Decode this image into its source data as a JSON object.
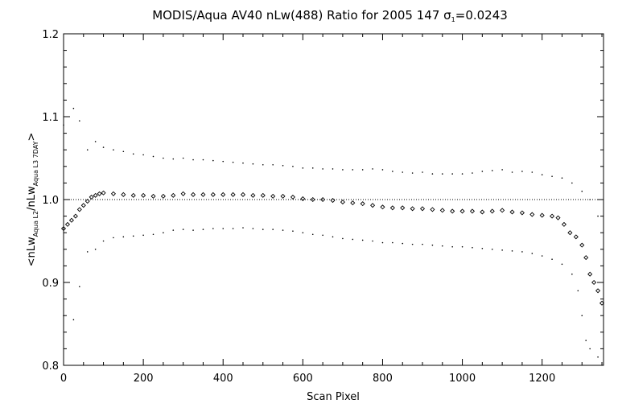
{
  "chart_data": {
    "type": "scatter",
    "title": {
      "prefix": "MODIS/Aqua AV40 nLw(488) Ratio for 2005 147 ",
      "sigma_symbol": "σ",
      "sigma_subscript": "1",
      "sigma_value": "=0.0243"
    },
    "xlabel": "Scan Pixel",
    "ylabel": {
      "open": "<nLw",
      "sub1": "Aqua L2",
      "mid": "/nLw",
      "sub2": "Aqua L3 7DAY",
      "close": ">"
    },
    "xlim": [
      0,
      1354
    ],
    "ylim": [
      0.8,
      1.2
    ],
    "x_ticks": [
      {
        "value": 0,
        "label": "0"
      },
      {
        "value": 200,
        "label": "200"
      },
      {
        "value": 400,
        "label": "400"
      },
      {
        "value": 600,
        "label": "600"
      },
      {
        "value": 800,
        "label": "800"
      },
      {
        "value": 1000,
        "label": "1000"
      },
      {
        "value": 1200,
        "label": "1200"
      }
    ],
    "y_ticks": [
      {
        "value": 0.8,
        "label": "0.8"
      },
      {
        "value": 0.9,
        "label": "0.9"
      },
      {
        "value": 1.0,
        "label": "1.0"
      },
      {
        "value": 1.1,
        "label": "1.1"
      },
      {
        "value": 1.2,
        "label": "1.2"
      }
    ],
    "reference_line": 1.0,
    "series": [
      {
        "role": "mean",
        "marker": "diamond",
        "points": [
          [
            0,
            0.965
          ],
          [
            10,
            0.97
          ],
          [
            20,
            0.975
          ],
          [
            30,
            0.98
          ],
          [
            40,
            0.988
          ],
          [
            50,
            0.993
          ],
          [
            60,
            0.998
          ],
          [
            70,
            1.003
          ],
          [
            80,
            1.005
          ],
          [
            90,
            1.007
          ],
          [
            100,
            1.008
          ],
          [
            125,
            1.007
          ],
          [
            150,
            1.006
          ],
          [
            175,
            1.005
          ],
          [
            200,
            1.005
          ],
          [
            225,
            1.004
          ],
          [
            250,
            1.004
          ],
          [
            275,
            1.005
          ],
          [
            300,
            1.007
          ],
          [
            325,
            1.006
          ],
          [
            350,
            1.006
          ],
          [
            375,
            1.006
          ],
          [
            400,
            1.006
          ],
          [
            425,
            1.006
          ],
          [
            450,
            1.006
          ],
          [
            475,
            1.005
          ],
          [
            500,
            1.005
          ],
          [
            525,
            1.004
          ],
          [
            550,
            1.004
          ],
          [
            575,
            1.003
          ],
          [
            600,
            1.001
          ],
          [
            625,
            1.0
          ],
          [
            650,
            1.0
          ],
          [
            675,
            0.999
          ],
          [
            700,
            0.997
          ],
          [
            725,
            0.996
          ],
          [
            750,
            0.995
          ],
          [
            775,
            0.993
          ],
          [
            800,
            0.991
          ],
          [
            825,
            0.99
          ],
          [
            850,
            0.99
          ],
          [
            875,
            0.989
          ],
          [
            900,
            0.989
          ],
          [
            925,
            0.988
          ],
          [
            950,
            0.987
          ],
          [
            975,
            0.986
          ],
          [
            1000,
            0.986
          ],
          [
            1025,
            0.986
          ],
          [
            1050,
            0.985
          ],
          [
            1075,
            0.986
          ],
          [
            1100,
            0.987
          ],
          [
            1125,
            0.985
          ],
          [
            1150,
            0.984
          ],
          [
            1175,
            0.982
          ],
          [
            1200,
            0.981
          ],
          [
            1225,
            0.98
          ],
          [
            1240,
            0.978
          ],
          [
            1255,
            0.97
          ],
          [
            1270,
            0.96
          ],
          [
            1285,
            0.955
          ],
          [
            1300,
            0.945
          ],
          [
            1310,
            0.93
          ],
          [
            1320,
            0.91
          ],
          [
            1330,
            0.9
          ],
          [
            1340,
            0.89
          ],
          [
            1350,
            0.875
          ]
        ]
      },
      {
        "role": "upper",
        "marker": "dot",
        "points": [
          [
            0,
            1.09
          ],
          [
            25,
            1.11
          ],
          [
            40,
            1.095
          ],
          [
            60,
            1.06
          ],
          [
            80,
            1.07
          ],
          [
            100,
            1.063
          ],
          [
            125,
            1.06
          ],
          [
            150,
            1.058
          ],
          [
            175,
            1.055
          ],
          [
            200,
            1.054
          ],
          [
            225,
            1.052
          ],
          [
            250,
            1.05
          ],
          [
            275,
            1.049
          ],
          [
            300,
            1.05
          ],
          [
            325,
            1.048
          ],
          [
            350,
            1.048
          ],
          [
            375,
            1.047
          ],
          [
            400,
            1.046
          ],
          [
            425,
            1.045
          ],
          [
            450,
            1.044
          ],
          [
            475,
            1.043
          ],
          [
            500,
            1.042
          ],
          [
            525,
            1.042
          ],
          [
            550,
            1.041
          ],
          [
            575,
            1.04
          ],
          [
            600,
            1.038
          ],
          [
            625,
            1.038
          ],
          [
            650,
            1.037
          ],
          [
            675,
            1.037
          ],
          [
            700,
            1.036
          ],
          [
            725,
            1.036
          ],
          [
            750,
            1.036
          ],
          [
            775,
            1.037
          ],
          [
            800,
            1.036
          ],
          [
            825,
            1.034
          ],
          [
            850,
            1.033
          ],
          [
            875,
            1.032
          ],
          [
            900,
            1.033
          ],
          [
            925,
            1.031
          ],
          [
            950,
            1.031
          ],
          [
            975,
            1.031
          ],
          [
            1000,
            1.031
          ],
          [
            1025,
            1.032
          ],
          [
            1050,
            1.034
          ],
          [
            1075,
            1.035
          ],
          [
            1100,
            1.036
          ],
          [
            1125,
            1.033
          ],
          [
            1150,
            1.034
          ],
          [
            1175,
            1.033
          ],
          [
            1200,
            1.03
          ],
          [
            1225,
            1.028
          ],
          [
            1250,
            1.026
          ],
          [
            1275,
            1.02
          ],
          [
            1300,
            1.01
          ],
          [
            1320,
            1.0
          ],
          [
            1340,
            0.98
          ]
        ]
      },
      {
        "role": "lower",
        "marker": "dot",
        "points": [
          [
            0,
            0.86
          ],
          [
            25,
            0.855
          ],
          [
            40,
            0.895
          ],
          [
            60,
            0.937
          ],
          [
            80,
            0.94
          ],
          [
            100,
            0.95
          ],
          [
            125,
            0.954
          ],
          [
            150,
            0.955
          ],
          [
            175,
            0.956
          ],
          [
            200,
            0.957
          ],
          [
            225,
            0.958
          ],
          [
            250,
            0.96
          ],
          [
            275,
            0.963
          ],
          [
            300,
            0.964
          ],
          [
            325,
            0.963
          ],
          [
            350,
            0.964
          ],
          [
            375,
            0.965
          ],
          [
            400,
            0.965
          ],
          [
            425,
            0.965
          ],
          [
            450,
            0.966
          ],
          [
            475,
            0.965
          ],
          [
            500,
            0.964
          ],
          [
            525,
            0.964
          ],
          [
            550,
            0.963
          ],
          [
            575,
            0.962
          ],
          [
            600,
            0.96
          ],
          [
            625,
            0.958
          ],
          [
            650,
            0.957
          ],
          [
            675,
            0.955
          ],
          [
            700,
            0.953
          ],
          [
            725,
            0.952
          ],
          [
            750,
            0.951
          ],
          [
            775,
            0.95
          ],
          [
            800,
            0.948
          ],
          [
            825,
            0.948
          ],
          [
            850,
            0.947
          ],
          [
            875,
            0.946
          ],
          [
            900,
            0.946
          ],
          [
            925,
            0.945
          ],
          [
            950,
            0.944
          ],
          [
            975,
            0.943
          ],
          [
            1000,
            0.943
          ],
          [
            1025,
            0.942
          ],
          [
            1050,
            0.941
          ],
          [
            1075,
            0.94
          ],
          [
            1100,
            0.939
          ],
          [
            1125,
            0.938
          ],
          [
            1150,
            0.937
          ],
          [
            1175,
            0.935
          ],
          [
            1200,
            0.932
          ],
          [
            1225,
            0.928
          ],
          [
            1250,
            0.922
          ],
          [
            1275,
            0.91
          ],
          [
            1290,
            0.89
          ],
          [
            1300,
            0.86
          ],
          [
            1310,
            0.83
          ],
          [
            1320,
            0.82
          ],
          [
            1340,
            0.81
          ]
        ]
      }
    ]
  }
}
